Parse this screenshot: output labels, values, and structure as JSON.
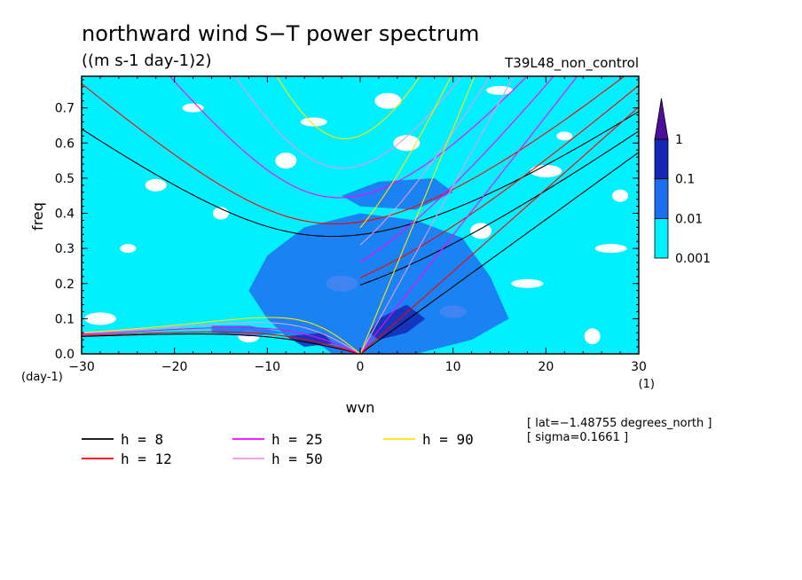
{
  "chart_data": {
    "type": "heatmap",
    "title": "northward wind S−T power spectrum",
    "subtitle": "((m s-1 day-1)2)",
    "run_label": "T39L48_non_control",
    "xlabel": "wvn",
    "ylabel": "freq",
    "x_unit_label": "(1)",
    "y_unit_label": "(day-1)",
    "xlim": [
      -30,
      30
    ],
    "ylim": [
      0,
      0.79
    ],
    "x_ticks": [
      -30,
      -20,
      -10,
      0,
      10,
      20,
      30
    ],
    "x_tick_labels": [
      "−30",
      "−20",
      "−10",
      "0",
      "10",
      "20",
      "30"
    ],
    "y_ticks": [
      0,
      0.1,
      0.2,
      0.3,
      0.4,
      0.5,
      0.6,
      0.7
    ],
    "y_tick_labels": [
      "0.0",
      "0.1",
      "0.2",
      "0.3",
      "0.4",
      "0.5",
      "0.6",
      "0.7"
    ],
    "colorbar": {
      "levels": [
        "0.001",
        "0.01",
        "0.1",
        "1"
      ],
      "colors": [
        "#00f0ff",
        "#1e6ef0",
        "#1428b4",
        "#4b0f9b"
      ]
    },
    "contour_regions": [
      {
        "level_index": 1,
        "polygon": [
          [
            -3,
            0
          ],
          [
            0,
            0
          ],
          [
            6,
            0
          ],
          [
            12,
            0.04
          ],
          [
            16,
            0.1
          ],
          [
            14,
            0.22
          ],
          [
            11,
            0.33
          ],
          [
            6,
            0.38
          ],
          [
            0,
            0.4
          ],
          [
            -6,
            0.36
          ],
          [
            -10,
            0.28
          ],
          [
            -12,
            0.18
          ],
          [
            -10,
            0.1
          ],
          [
            -8,
            0.05
          ],
          [
            -4,
            0.02
          ]
        ]
      },
      {
        "level_index": 1,
        "polygon": [
          [
            -16,
            0.06
          ],
          [
            -12,
            0.05
          ],
          [
            -8,
            0.06
          ],
          [
            -12,
            0.08
          ],
          [
            -16,
            0.08
          ]
        ]
      },
      {
        "level_index": 1,
        "polygon": [
          [
            0,
            0.42
          ],
          [
            6,
            0.41
          ],
          [
            10,
            0.46
          ],
          [
            8,
            0.5
          ],
          [
            2,
            0.49
          ],
          [
            -2,
            0.45
          ]
        ]
      },
      {
        "level_index": 2,
        "polygon": [
          [
            2,
            0.04
          ],
          [
            5,
            0.06
          ],
          [
            7,
            0.1
          ],
          [
            5,
            0.14
          ],
          [
            2,
            0.1
          ],
          [
            1,
            0.06
          ]
        ]
      },
      {
        "level_index": 2,
        "polygon": [
          [
            -6,
            0.02
          ],
          [
            -3,
            0.03
          ],
          [
            -4,
            0.06
          ],
          [
            -8,
            0.05
          ]
        ]
      }
    ],
    "white_patches": [
      [
        -25,
        0.3
      ],
      [
        -12,
        0.05
      ],
      [
        5,
        0.6
      ],
      [
        18,
        0.2
      ],
      [
        28,
        0.45
      ],
      [
        -8,
        0.55
      ],
      [
        15,
        0.75
      ],
      [
        -28,
        0.1
      ],
      [
        25,
        0.05
      ],
      [
        -18,
        0.7
      ],
      [
        10,
        0.12
      ],
      [
        -2,
        0.2
      ],
      [
        22,
        0.62
      ],
      [
        -22,
        0.48
      ],
      [
        3,
        0.72
      ],
      [
        27,
        0.3
      ],
      [
        -15,
        0.4
      ],
      [
        13,
        0.35
      ],
      [
        -5,
        0.66
      ],
      [
        20,
        0.52
      ]
    ],
    "series": [
      {
        "name": "h = 8",
        "h": 8,
        "color": "#000000"
      },
      {
        "name": "h = 12",
        "h": 12,
        "color": "#ff0000"
      },
      {
        "name": "h = 25",
        "h": 25,
        "color": "#ff00ff"
      },
      {
        "name": "h = 50",
        "h": 50,
        "color": "#e59ae5"
      },
      {
        "name": "h = 90",
        "h": 90,
        "color": "#ffe600"
      }
    ],
    "grid": false,
    "legend_placement": "bottom-left"
  },
  "annotations": {
    "lat": "[ lat=−1.48755 degrees_north ]",
    "sigma": "[ sigma=0.1661 ]"
  }
}
